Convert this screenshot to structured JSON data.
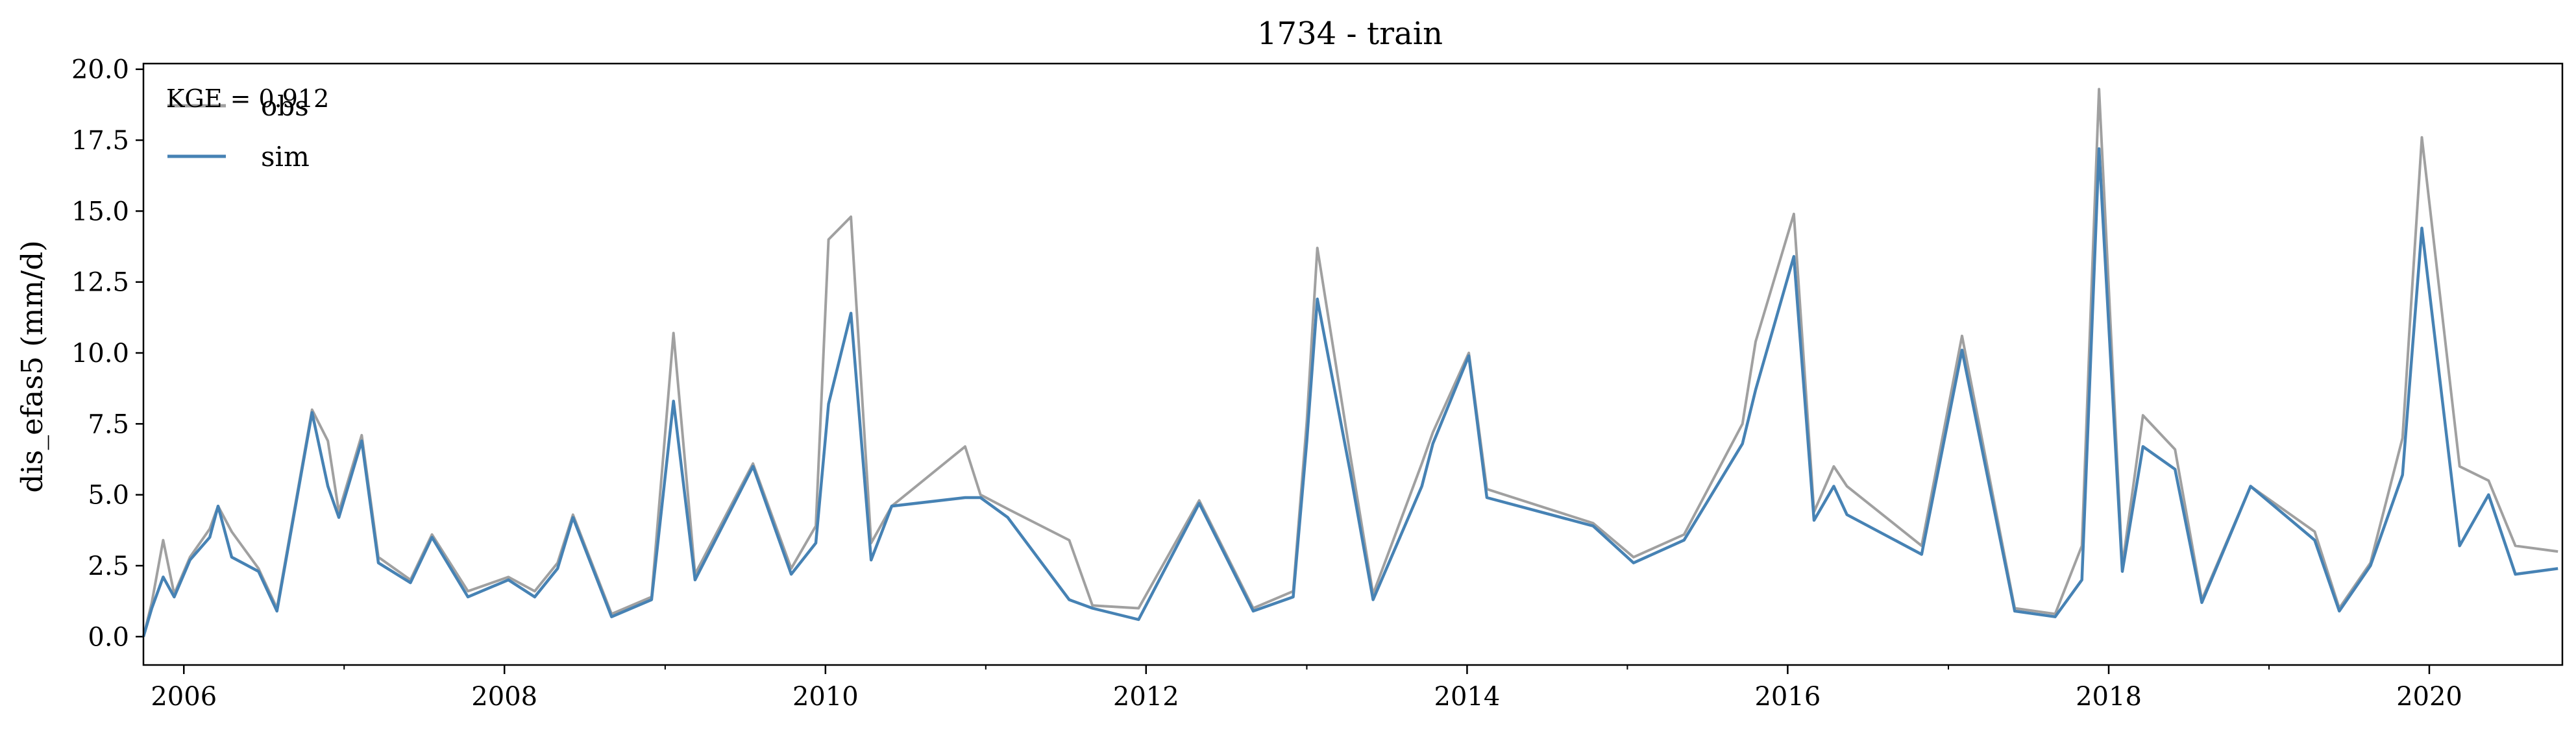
{
  "chart_data": {
    "type": "line",
    "title": "1734 - train",
    "xlabel": "",
    "ylabel": "dis_efas5 (mm/d)",
    "annotation": "KGE = 0.912",
    "xlim": [
      "2005-10-01",
      "2020-10-30"
    ],
    "ylim": [
      -1.0,
      20.2
    ],
    "x_ticks": [
      "2006",
      "2008",
      "2010",
      "2012",
      "2014",
      "2016",
      "2018",
      "2020"
    ],
    "y_ticks": [
      "0.0",
      "2.5",
      "5.0",
      "7.5",
      "10.0",
      "12.5",
      "15.0",
      "17.5",
      "20.0"
    ],
    "grid": false,
    "legend_position": "upper-left",
    "series": [
      {
        "name": "obs",
        "color": "#a0a0a0",
        "points": [
          [
            "2005-10-01",
            0.0
          ],
          [
            "2005-10-20",
            1.2
          ],
          [
            "2005-11-15",
            3.4
          ],
          [
            "2005-12-10",
            1.5
          ],
          [
            "2006-01-15",
            2.8
          ],
          [
            "2006-03-01",
            3.8
          ],
          [
            "2006-03-20",
            4.6
          ],
          [
            "2006-04-20",
            3.7
          ],
          [
            "2006-06-20",
            2.4
          ],
          [
            "2006-08-01",
            1.0
          ],
          [
            "2006-10-20",
            8.0
          ],
          [
            "2006-11-25",
            6.9
          ],
          [
            "2006-12-20",
            4.4
          ],
          [
            "2007-02-10",
            7.1
          ],
          [
            "2007-03-20",
            2.8
          ],
          [
            "2007-06-01",
            2.0
          ],
          [
            "2007-07-20",
            3.6
          ],
          [
            "2007-10-10",
            1.6
          ],
          [
            "2008-01-10",
            2.1
          ],
          [
            "2008-03-10",
            1.6
          ],
          [
            "2008-05-01",
            2.6
          ],
          [
            "2008-06-05",
            4.3
          ],
          [
            "2008-09-01",
            0.8
          ],
          [
            "2008-12-01",
            1.4
          ],
          [
            "2009-01-20",
            10.7
          ],
          [
            "2009-03-10",
            2.2
          ],
          [
            "2009-07-20",
            6.1
          ],
          [
            "2009-10-15",
            2.4
          ],
          [
            "2009-12-10",
            3.9
          ],
          [
            "2010-01-08",
            14.0
          ],
          [
            "2010-02-28",
            14.8
          ],
          [
            "2010-04-15",
            3.3
          ],
          [
            "2010-06-01",
            4.6
          ],
          [
            "2010-11-15",
            6.7
          ],
          [
            "2010-12-20",
            5.0
          ],
          [
            "2011-02-20",
            4.5
          ],
          [
            "2011-07-10",
            3.4
          ],
          [
            "2011-09-01",
            1.1
          ],
          [
            "2011-12-15",
            1.0
          ],
          [
            "2012-05-01",
            4.8
          ],
          [
            "2012-09-01",
            1.0
          ],
          [
            "2012-12-01",
            1.6
          ],
          [
            "2013-01-01",
            7.6
          ],
          [
            "2013-01-25",
            13.7
          ],
          [
            "2013-04-10",
            6.4
          ],
          [
            "2013-06-01",
            1.5
          ],
          [
            "2013-09-20",
            6.1
          ],
          [
            "2013-10-15",
            7.2
          ],
          [
            "2014-01-05",
            10.0
          ],
          [
            "2014-02-15",
            5.2
          ],
          [
            "2014-10-15",
            4.0
          ],
          [
            "2015-01-15",
            2.8
          ],
          [
            "2015-05-10",
            3.6
          ],
          [
            "2015-09-20",
            7.5
          ],
          [
            "2015-10-20",
            10.4
          ],
          [
            "2016-01-15",
            14.9
          ],
          [
            "2016-03-01",
            4.4
          ],
          [
            "2016-04-15",
            6.0
          ],
          [
            "2016-05-15",
            5.3
          ],
          [
            "2016-11-01",
            3.2
          ],
          [
            "2017-02-01",
            10.6
          ],
          [
            "2017-06-01",
            1.0
          ],
          [
            "2017-09-01",
            0.8
          ],
          [
            "2017-11-01",
            3.2
          ],
          [
            "2017-12-10",
            19.3
          ],
          [
            "2018-02-01",
            2.5
          ],
          [
            "2018-03-20",
            7.8
          ],
          [
            "2018-06-01",
            6.6
          ],
          [
            "2018-08-01",
            1.3
          ],
          [
            "2018-11-20",
            5.3
          ],
          [
            "2019-04-15",
            3.7
          ],
          [
            "2019-06-10",
            1.0
          ],
          [
            "2019-08-20",
            2.6
          ],
          [
            "2019-11-01",
            7.0
          ],
          [
            "2019-12-15",
            17.6
          ],
          [
            "2020-03-10",
            6.0
          ],
          [
            "2020-05-15",
            5.5
          ],
          [
            "2020-07-15",
            3.2
          ],
          [
            "2020-10-20",
            3.0
          ]
        ]
      },
      {
        "name": "sim",
        "color": "#4682b4",
        "points": [
          [
            "2005-10-01",
            0.0
          ],
          [
            "2005-10-20",
            1.0
          ],
          [
            "2005-11-15",
            2.1
          ],
          [
            "2005-12-10",
            1.4
          ],
          [
            "2006-01-15",
            2.7
          ],
          [
            "2006-03-01",
            3.5
          ],
          [
            "2006-03-20",
            4.6
          ],
          [
            "2006-04-20",
            2.8
          ],
          [
            "2006-06-20",
            2.3
          ],
          [
            "2006-08-01",
            0.9
          ],
          [
            "2006-10-20",
            7.9
          ],
          [
            "2006-11-25",
            5.3
          ],
          [
            "2006-12-20",
            4.2
          ],
          [
            "2007-02-10",
            6.9
          ],
          [
            "2007-03-20",
            2.6
          ],
          [
            "2007-06-01",
            1.9
          ],
          [
            "2007-07-20",
            3.5
          ],
          [
            "2007-10-10",
            1.4
          ],
          [
            "2008-01-10",
            2.0
          ],
          [
            "2008-03-10",
            1.4
          ],
          [
            "2008-05-01",
            2.4
          ],
          [
            "2008-06-05",
            4.2
          ],
          [
            "2008-09-01",
            0.7
          ],
          [
            "2008-12-01",
            1.3
          ],
          [
            "2009-01-20",
            8.3
          ],
          [
            "2009-03-10",
            2.0
          ],
          [
            "2009-07-20",
            6.0
          ],
          [
            "2009-10-15",
            2.2
          ],
          [
            "2009-12-10",
            3.3
          ],
          [
            "2010-01-08",
            8.2
          ],
          [
            "2010-02-28",
            11.4
          ],
          [
            "2010-04-15",
            2.7
          ],
          [
            "2010-06-01",
            4.6
          ],
          [
            "2010-11-15",
            4.9
          ],
          [
            "2010-12-20",
            4.9
          ],
          [
            "2011-02-20",
            4.2
          ],
          [
            "2011-07-10",
            1.3
          ],
          [
            "2011-09-01",
            1.0
          ],
          [
            "2011-12-15",
            0.6
          ],
          [
            "2012-05-01",
            4.7
          ],
          [
            "2012-09-01",
            0.9
          ],
          [
            "2012-12-01",
            1.4
          ],
          [
            "2013-01-01",
            6.9
          ],
          [
            "2013-01-25",
            11.9
          ],
          [
            "2013-04-10",
            5.8
          ],
          [
            "2013-06-01",
            1.3
          ],
          [
            "2013-09-20",
            5.3
          ],
          [
            "2013-10-15",
            6.8
          ],
          [
            "2014-01-05",
            9.9
          ],
          [
            "2014-02-15",
            4.9
          ],
          [
            "2014-10-15",
            3.9
          ],
          [
            "2015-01-15",
            2.6
          ],
          [
            "2015-05-10",
            3.4
          ],
          [
            "2015-09-20",
            6.8
          ],
          [
            "2015-10-20",
            8.7
          ],
          [
            "2016-01-15",
            13.4
          ],
          [
            "2016-03-01",
            4.1
          ],
          [
            "2016-04-15",
            5.3
          ],
          [
            "2016-05-15",
            4.3
          ],
          [
            "2016-11-01",
            2.9
          ],
          [
            "2017-02-01",
            10.1
          ],
          [
            "2017-06-01",
            0.9
          ],
          [
            "2017-09-01",
            0.7
          ],
          [
            "2017-11-01",
            2.0
          ],
          [
            "2017-12-10",
            17.2
          ],
          [
            "2018-02-01",
            2.3
          ],
          [
            "2018-03-20",
            6.7
          ],
          [
            "2018-06-01",
            5.9
          ],
          [
            "2018-08-01",
            1.2
          ],
          [
            "2018-11-20",
            5.3
          ],
          [
            "2019-04-15",
            3.4
          ],
          [
            "2019-06-10",
            0.9
          ],
          [
            "2019-08-20",
            2.5
          ],
          [
            "2019-11-01",
            5.7
          ],
          [
            "2019-12-15",
            14.4
          ],
          [
            "2020-03-10",
            3.2
          ],
          [
            "2020-05-15",
            5.0
          ],
          [
            "2020-07-15",
            2.2
          ],
          [
            "2020-10-20",
            2.4
          ]
        ]
      }
    ]
  }
}
